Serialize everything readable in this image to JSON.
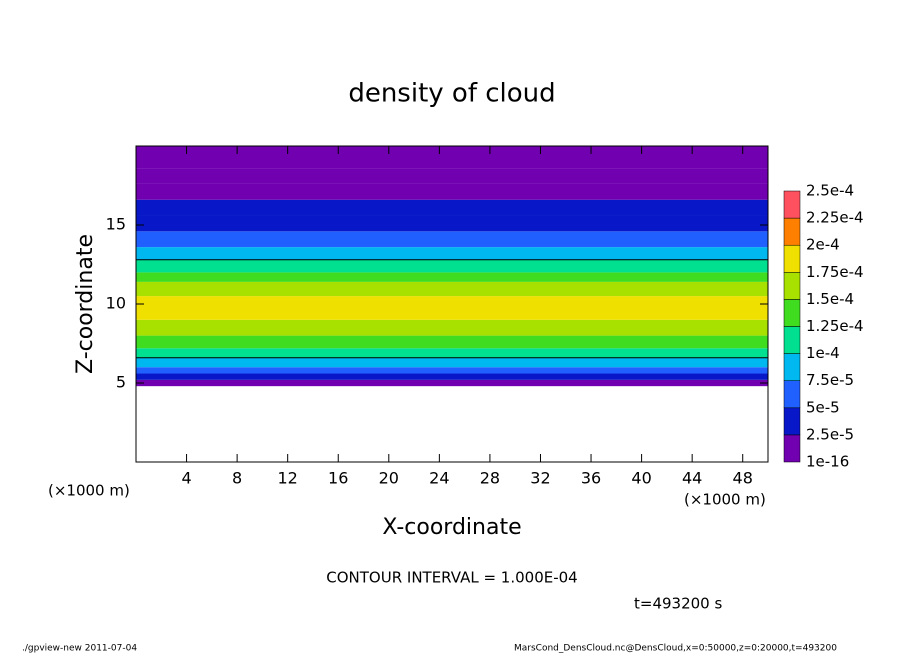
{
  "chart_data": {
    "type": "contour",
    "title": "density of cloud",
    "x_label": "X-coordinate",
    "y_label": "Z-coordinate",
    "x_unit": "(×1000 m)",
    "y_unit": "(×1000 m)",
    "contour_note": "CONTOUR INTERVAL = 1.000E-04",
    "time_label": "t=493200 s",
    "footer_left": "./gpview-new  2011-07-04",
    "footer_right": "MarsCond_DensCloud.nc@DensCloud,x=0:50000,z=0:20000,t=493200",
    "xlim": [
      0,
      50
    ],
    "ylim": [
      0,
      20
    ],
    "xticks": [
      4,
      8,
      12,
      16,
      20,
      24,
      28,
      32,
      36,
      40,
      44,
      48
    ],
    "yticks": [
      5,
      10,
      15
    ],
    "contour_levels": [
      0.0001
    ],
    "z_edges": [
      4.8,
      5.2,
      5.6,
      6,
      6.6,
      7.2,
      8,
      9,
      10.5,
      11.4,
      12,
      12.8,
      13.6,
      14.6,
      15.6,
      16.6,
      17.6,
      18.6,
      20
    ],
    "values": [
      1.5e-05,
      3e-05,
      6e-05,
      8.5e-05,
      0.00011,
      0.00014,
      0.00016,
      0.00018,
      0.00016,
      0.00013,
      0.00011,
      8.5e-05,
      6e-05,
      4e-05,
      3e-05,
      2e-05,
      1e-05,
      5e-06
    ],
    "colorbar": {
      "levels": [
        {
          "value": 1e-16,
          "label": "1e-16"
        },
        {
          "value": 2.5e-05,
          "label": "2.5e-5"
        },
        {
          "value": 5e-05,
          "label": "5e-5"
        },
        {
          "value": 7.5e-05,
          "label": "7.5e-5"
        },
        {
          "value": 0.0001,
          "label": "1e-4"
        },
        {
          "value": 0.000125,
          "label": "1.25e-4"
        },
        {
          "value": 0.00015,
          "label": "1.5e-4"
        },
        {
          "value": 0.000175,
          "label": "1.75e-4"
        },
        {
          "value": 0.0002,
          "label": "2e-4"
        },
        {
          "value": 0.000225,
          "label": "2.25e-4"
        },
        {
          "value": 0.00025,
          "label": "2.5e-4"
        }
      ],
      "colors": [
        "#7000b0",
        "#0818c8",
        "#2060ff",
        "#00b8f0",
        "#00e090",
        "#40dc20",
        "#a8e000",
        "#f0e000",
        "#ff8000",
        "#ff5060"
      ]
    }
  }
}
